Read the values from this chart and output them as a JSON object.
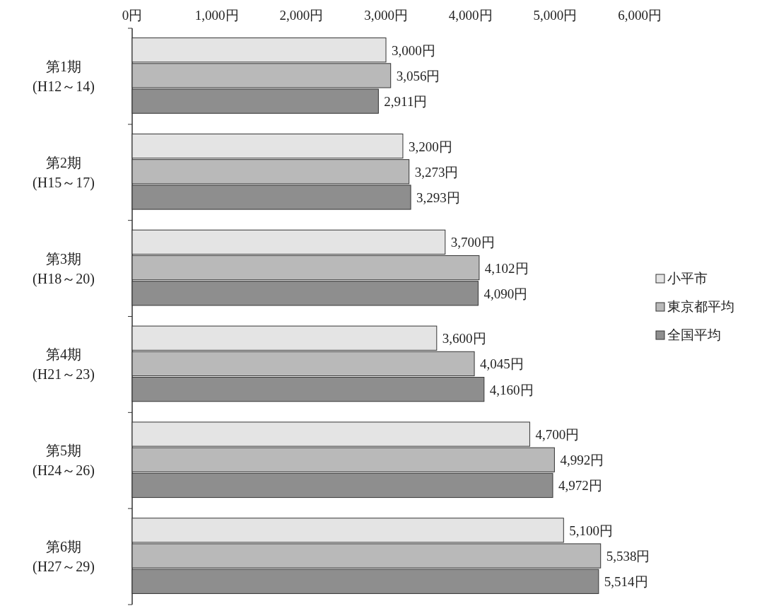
{
  "chart_data": {
    "type": "bar",
    "orientation": "horizontal",
    "categories": [
      "第1期\n(H12～14)",
      "第2期\n(H15～17)",
      "第3期\n(H18～20)",
      "第4期\n(H21～23)",
      "第5期\n(H24～26)",
      "第6期\n(H27～29)"
    ],
    "series": [
      {
        "name": "小平市",
        "color": "#e4e4e4",
        "values": [
          3000,
          3200,
          3700,
          3600,
          4700,
          5100
        ],
        "value_labels": [
          "3,000円",
          "3,200円",
          "3,700円",
          "3,600円",
          "4,700円",
          "5,100円"
        ]
      },
      {
        "name": "東京都平均",
        "color": "#b9b9b9",
        "values": [
          3056,
          3273,
          4102,
          4045,
          4992,
          5538
        ],
        "value_labels": [
          "3,056円",
          "3,273円",
          "4,102円",
          "4,045円",
          "4,992円",
          "5,538円"
        ]
      },
      {
        "name": "全国平均",
        "color": "#8e8e8e",
        "values": [
          2911,
          3293,
          4090,
          4160,
          4972,
          5514
        ],
        "value_labels": [
          "2,911円",
          "3,293円",
          "4,090円",
          "4,160円",
          "4,972円",
          "5,514円"
        ]
      }
    ],
    "xlim": [
      0,
      6000
    ],
    "xticks": [
      {
        "value": 0,
        "label": "0円"
      },
      {
        "value": 1000,
        "label": "1,000円"
      },
      {
        "value": 2000,
        "label": "2,000円"
      },
      {
        "value": 3000,
        "label": "3,000円"
      },
      {
        "value": 4000,
        "label": "4,000円"
      },
      {
        "value": 5000,
        "label": "5,000円"
      },
      {
        "value": 6000,
        "label": "6,000円"
      }
    ],
    "legend": "right",
    "grid": false
  }
}
